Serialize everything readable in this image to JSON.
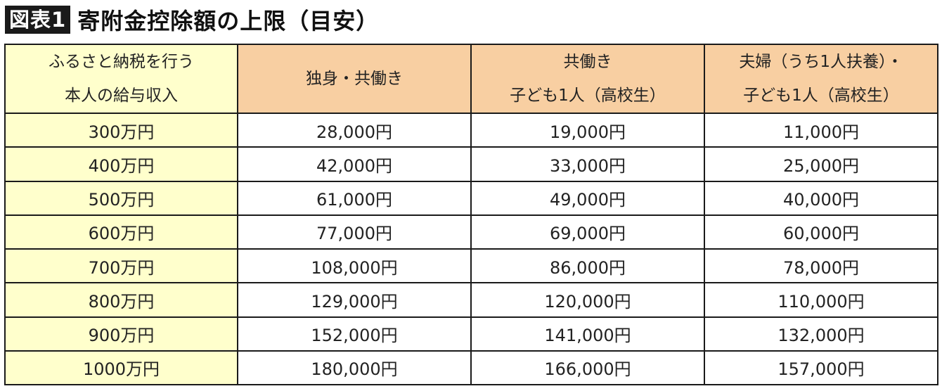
{
  "figure": {
    "badge": "図表1",
    "title": "寄附金控除額の上限（目安）"
  },
  "colors": {
    "income_column_bg": "#ffffcc",
    "header_bg": "#f8cfa2",
    "border": "#1a1a1a"
  },
  "table": {
    "headers": [
      {
        "lines": [
          "ふるさと納税を行う",
          "本人の給与収入"
        ]
      },
      {
        "lines": [
          "独身・共働き"
        ]
      },
      {
        "lines": [
          "共働き",
          "子ども1人（高校生）"
        ]
      },
      {
        "lines": [
          "夫婦（うち1人扶養）・",
          "子ども1人（高校生）"
        ]
      }
    ],
    "rows": [
      {
        "income": "300万円",
        "single": "28,000円",
        "dual_child": "19,000円",
        "couple_child": "11,000円"
      },
      {
        "income": "400万円",
        "single": "42,000円",
        "dual_child": "33,000円",
        "couple_child": "25,000円"
      },
      {
        "income": "500万円",
        "single": "61,000円",
        "dual_child": "49,000円",
        "couple_child": "40,000円"
      },
      {
        "income": "600万円",
        "single": "77,000円",
        "dual_child": "69,000円",
        "couple_child": "60,000円"
      },
      {
        "income": "700万円",
        "single": "108,000円",
        "dual_child": "86,000円",
        "couple_child": "78,000円"
      },
      {
        "income": "800万円",
        "single": "129,000円",
        "dual_child": "120,000円",
        "couple_child": "110,000円"
      },
      {
        "income": "900万円",
        "single": "152,000円",
        "dual_child": "141,000円",
        "couple_child": "132,000円"
      },
      {
        "income": "1000万円",
        "single": "180,000円",
        "dual_child": "166,000円",
        "couple_child": "157,000円"
      }
    ]
  }
}
